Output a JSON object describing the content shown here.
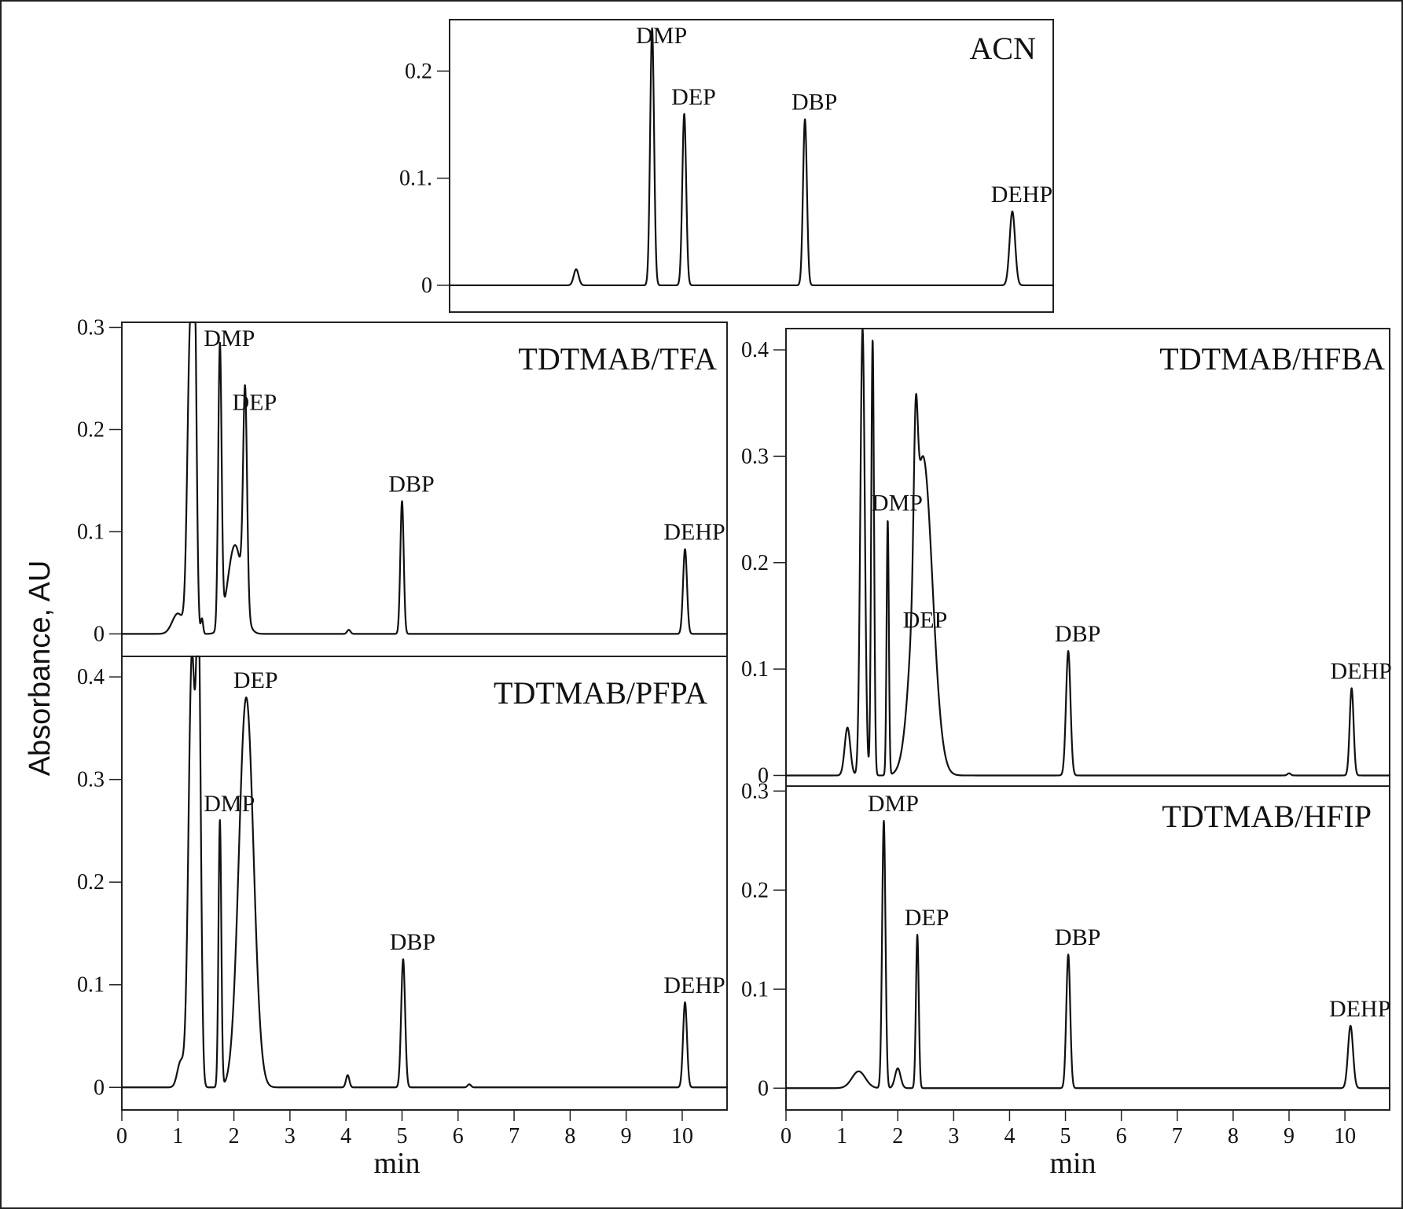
{
  "figure": {
    "ylabel": "Absorbance, AU",
    "xlabel_left": "min",
    "xlabel_right": "min"
  },
  "chart_data": [
    {
      "type": "line",
      "title": "ACN",
      "xlim": [
        5.4,
        11.6
      ],
      "ylim": [
        -0.025,
        0.248
      ],
      "yticks": [
        0,
        0.1,
        0.2
      ],
      "ytick_labels": [
        "0",
        "0.1.",
        "0.2"
      ],
      "peaks": [
        {
          "label": "",
          "x": 6.7,
          "height": 0.015,
          "width": 0.025
        },
        {
          "label": "DMP",
          "x": 7.48,
          "height": 0.24,
          "width": 0.02
        },
        {
          "label": "DEP",
          "x": 7.81,
          "height": 0.16,
          "width": 0.02
        },
        {
          "label": "DBP",
          "x": 9.05,
          "height": 0.155,
          "width": 0.02
        },
        {
          "label": "DEHP",
          "x": 11.18,
          "height": 0.069,
          "width": 0.028
        }
      ]
    },
    {
      "type": "line",
      "title": "TDTMAB/TFA",
      "xlim": [
        0,
        10.8
      ],
      "ylim": [
        -0.022,
        0.305
      ],
      "yticks": [
        0,
        0.1,
        0.2,
        0.3
      ],
      "ytick_labels": [
        "0",
        "0.1",
        "0.2",
        "0.3"
      ],
      "peaks": [
        {
          "label": "",
          "x": 1.0,
          "height": 0.02,
          "width": 0.1
        },
        {
          "label": "",
          "x": 1.22,
          "height": 0.29,
          "width": 0.05
        },
        {
          "label": "",
          "x": 1.3,
          "height": 0.29,
          "width": 0.035
        },
        {
          "label": "",
          "x": 1.43,
          "height": 0.015,
          "width": 0.02
        },
        {
          "label": "DMP",
          "x": 1.75,
          "height": 0.275,
          "width": 0.03
        },
        {
          "label": "",
          "x": 2.02,
          "height": 0.087,
          "width": 0.13
        },
        {
          "label": "DEP",
          "x": 2.2,
          "height": 0.21,
          "width": 0.035
        },
        {
          "label": "",
          "x": 4.05,
          "height": 0.004,
          "width": 0.03
        },
        {
          "label": "DBP",
          "x": 5.0,
          "height": 0.13,
          "width": 0.03
        },
        {
          "label": "DEHP",
          "x": 10.05,
          "height": 0.083,
          "width": 0.035
        }
      ]
    },
    {
      "type": "line",
      "title": "TDTMAB/PFPA",
      "xlim": [
        0,
        10.8
      ],
      "xticks": [
        0,
        1,
        2,
        3,
        4,
        5,
        6,
        7,
        8,
        9,
        10
      ],
      "ylim": [
        -0.022,
        0.42
      ],
      "yticks": [
        0,
        0.1,
        0.2,
        0.3,
        0.4
      ],
      "ytick_labels": [
        "0",
        "0.1",
        "0.2",
        "0.3",
        "0.4"
      ],
      "peaks": [
        {
          "label": "",
          "x": 1.05,
          "height": 0.025,
          "width": 0.06
        },
        {
          "label": "",
          "x": 1.25,
          "height": 0.42,
          "width": 0.06
        },
        {
          "label": "",
          "x": 1.37,
          "height": 0.42,
          "width": 0.04
        },
        {
          "label": "DMP",
          "x": 1.75,
          "height": 0.26,
          "width": 0.025
        },
        {
          "label": "DEP",
          "x": 2.22,
          "height": 0.38,
          "width": 0.13
        },
        {
          "label": "",
          "x": 4.03,
          "height": 0.012,
          "width": 0.03
        },
        {
          "label": "DBP",
          "x": 5.02,
          "height": 0.125,
          "width": 0.035
        },
        {
          "label": "",
          "x": 6.2,
          "height": 0.003,
          "width": 0.03
        },
        {
          "label": "DEHP",
          "x": 10.05,
          "height": 0.083,
          "width": 0.035
        }
      ]
    },
    {
      "type": "line",
      "title": "TDTMAB/HFBA",
      "xlim": [
        0,
        10.8
      ],
      "ylim": [
        -0.01,
        0.42
      ],
      "yticks": [
        0,
        0.1,
        0.2,
        0.3,
        0.4
      ],
      "ytick_labels": [
        "0",
        "0.1",
        "0.2",
        "0.3",
        "0.4"
      ],
      "peaks": [
        {
          "label": "",
          "x": 1.1,
          "height": 0.045,
          "width": 0.05
        },
        {
          "label": "",
          "x": 1.37,
          "height": 0.42,
          "width": 0.04
        },
        {
          "label": "",
          "x": 1.55,
          "height": 0.41,
          "width": 0.025
        },
        {
          "label": "DMP",
          "x": 1.82,
          "height": 0.24,
          "width": 0.02
        },
        {
          "label": "",
          "x": 2.45,
          "height": 0.3,
          "width": 0.17
        },
        {
          "label": "DEP",
          "x": 2.32,
          "height": 0.13,
          "width": 0.035
        },
        {
          "label": "DBP",
          "x": 5.05,
          "height": 0.117,
          "width": 0.04
        },
        {
          "label": "",
          "x": 9.0,
          "height": 0.002,
          "width": 0.03
        },
        {
          "label": "DEHP",
          "x": 10.12,
          "height": 0.082,
          "width": 0.035
        }
      ]
    },
    {
      "type": "line",
      "title": "TDTMAB/HFIP",
      "xlim": [
        0,
        10.8
      ],
      "xticks": [
        0,
        1,
        2,
        3,
        4,
        5,
        6,
        7,
        8,
        9,
        10
      ],
      "ylim": [
        -0.022,
        0.305
      ],
      "yticks": [
        0,
        0.1,
        0.2,
        0.3
      ],
      "ytick_labels": [
        "0",
        "0.1",
        "0.2",
        "0.3"
      ],
      "peaks": [
        {
          "label": "",
          "x": 1.3,
          "height": 0.017,
          "width": 0.12
        },
        {
          "label": "DMP",
          "x": 1.75,
          "height": 0.27,
          "width": 0.03
        },
        {
          "label": "",
          "x": 2.0,
          "height": 0.02,
          "width": 0.05
        },
        {
          "label": "DEP",
          "x": 2.35,
          "height": 0.155,
          "width": 0.025
        },
        {
          "label": "DBP",
          "x": 5.05,
          "height": 0.135,
          "width": 0.035
        },
        {
          "label": "DEHP",
          "x": 10.1,
          "height": 0.063,
          "width": 0.045
        }
      ]
    }
  ]
}
